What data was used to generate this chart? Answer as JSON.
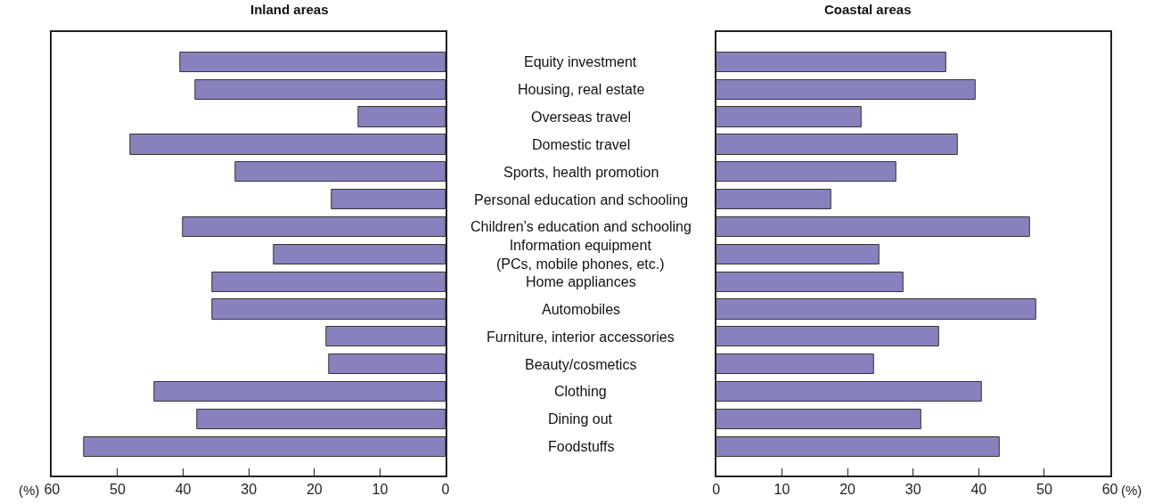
{
  "chart_data": [
    {
      "type": "bar",
      "orientation": "horizontal",
      "title": "Inland areas",
      "xlabel": "(%)",
      "categories": [
        "Equity investment",
        "Housing, real estate",
        "Overseas travel",
        "Domestic travel",
        "Sports, health promotion",
        "Personal education and schooling",
        "Children’s education and schooling",
        "Information equipment\n(PCs, mobile phones, etc.)",
        "Home appliances",
        "Automobiles",
        "Furniture, interior accessories",
        "Beauty/cosmetics",
        "Clothing",
        "Dining out",
        "Foodstuffs"
      ],
      "values": [
        40.4,
        38.2,
        13.3,
        48.0,
        32.0,
        17.3,
        40.0,
        26.2,
        35.6,
        35.6,
        18.2,
        17.8,
        44.4,
        37.8,
        55.1
      ],
      "color": "#8782bd",
      "xlim": [
        60,
        0
      ],
      "xticks": [
        60,
        50,
        40,
        30,
        20,
        10,
        0
      ]
    },
    {
      "type": "bar",
      "orientation": "horizontal",
      "title": "Coastal areas",
      "xlabel": "(%)",
      "categories": [
        "Equity investment",
        "Housing, real estate",
        "Overseas travel",
        "Domestic travel",
        "Sports, health promotion",
        "Personal education and schooling",
        "Children’s education and schooling",
        "Information equipment\n(PCs, mobile phones, etc.)",
        "Home appliances",
        "Automobiles",
        "Furniture, interior accessories",
        "Beauty/cosmetics",
        "Clothing",
        "Dining out",
        "Foodstuffs"
      ],
      "values": [
        35.0,
        39.5,
        22.1,
        36.8,
        27.5,
        17.5,
        47.8,
        24.9,
        28.5,
        48.7,
        34.0,
        24.0,
        40.5,
        31.3,
        43.2
      ],
      "color": "#8782bd",
      "xlim": [
        0,
        60
      ],
      "xticks": [
        0,
        10,
        20,
        30,
        40,
        50,
        60
      ],
      "tick_labels": "x"
    }
  ]
}
